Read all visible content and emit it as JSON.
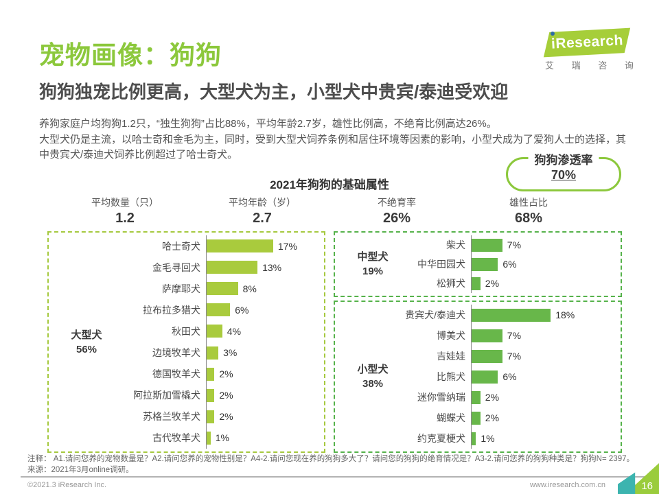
{
  "page": {
    "title": "宠物画像：狗狗",
    "subtitle": "狗狗独宠比例更高，大型犬为主，小型犬中贵宾/泰迪受欢迎",
    "body_line1": "养狗家庭户均狗狗1.2只，“独生狗狗”占比88%，平均年龄2.7岁，雄性比例高，不绝育比例高达26%。",
    "body_line2": "大型犬仍是主流，以哈士奇和金毛为主，同时，受到大型犬饲养条例和居住环境等因素的影响，小型犬成为了爱狗人士的选择，其中贵宾犬/泰迪犬饲养比例超过了哈士奇犬。"
  },
  "logo": {
    "brand": "Research",
    "brand_i": "i",
    "brand_cn": "艾 瑞 咨 询"
  },
  "badge": {
    "label": "狗狗渗透率",
    "value": "70%"
  },
  "stats": [
    {
      "label": "平均数量（只）",
      "value": "1.2"
    },
    {
      "label": "平均年龄（岁）",
      "value": "2.7"
    },
    {
      "label": "不绝育率",
      "value": "26%"
    },
    {
      "label": "雄性占比",
      "value": "68%"
    }
  ],
  "chart_data": [
    {
      "type": "bar",
      "orientation": "horizontal",
      "title": "2021年狗狗的基础属性",
      "group": "大型犬",
      "group_share": "56%",
      "unit": "%",
      "categories": [
        "哈士奇犬",
        "金毛寻回犬",
        "萨摩耶犬",
        "拉布拉多猎犬",
        "秋田犬",
        "边境牧羊犬",
        "德国牧羊犬",
        "阿拉斯加雪橇犬",
        "苏格兰牧羊犬",
        "古代牧羊犬"
      ],
      "values": [
        17,
        13,
        8,
        6,
        4,
        3,
        2,
        2,
        2,
        1
      ],
      "bar_color": "#A9CB3D"
    },
    {
      "type": "bar",
      "orientation": "horizontal",
      "group": "中型犬",
      "group_share": "19%",
      "unit": "%",
      "categories": [
        "柴犬",
        "中华田园犬",
        "松狮犬"
      ],
      "values": [
        7,
        6,
        2
      ],
      "bar_color": "#68B74A"
    },
    {
      "type": "bar",
      "orientation": "horizontal",
      "group": "小型犬",
      "group_share": "38%",
      "unit": "%",
      "categories": [
        "贵宾犬/泰迪犬",
        "博美犬",
        "吉娃娃",
        "比熊犬",
        "迷你雪纳瑞",
        "蝴蝶犬",
        "约克夏梗犬"
      ],
      "values": [
        18,
        7,
        7,
        6,
        2,
        2,
        1
      ],
      "bar_color": "#68B74A"
    }
  ],
  "chart_title": "2021年狗狗的基础属性",
  "notes": {
    "line1": "注释： A1.请问您养的宠物数量是？A2.请问您养的宠物性别是？A4-2.请问您现在养的狗狗多大了？请问您的狗狗的绝育情况是？A3-2.请问您养的狗狗种类是？狗狗N= 2397。",
    "line2": "来源：2021年3月online调研。"
  },
  "footer": {
    "copyright": "©2021.3 iResearch Inc.",
    "website": "www.iresearch.com.cn",
    "page_number": "16"
  },
  "colors": {
    "accent_green": "#8CC83C",
    "bar_light_green": "#A9CB3D",
    "bar_green": "#68B74A",
    "border_light": "#A5C93E",
    "border_green": "#55B24A",
    "corner_teal": "#3CB4AF"
  }
}
